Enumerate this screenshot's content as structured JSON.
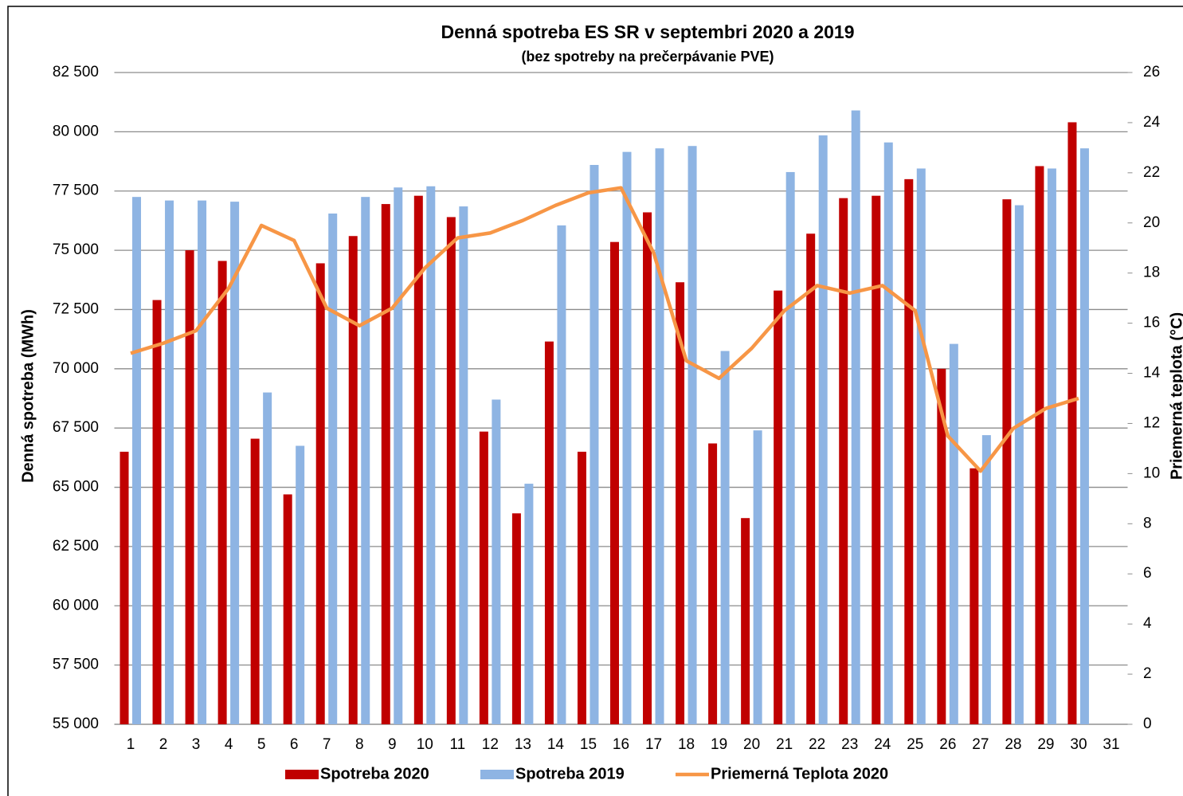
{
  "chart_data": {
    "type": "bar-line",
    "title": "Denná spotreba ES SR v septembri 2020 a 2019",
    "subtitle": "(bez spotreby na prečerpávanie PVE)",
    "y_label": "Denná spotreba (MWh)",
    "y2_label": "Priemerná teplota (°C)",
    "categories": [
      "1",
      "2",
      "3",
      "4",
      "5",
      "6",
      "7",
      "8",
      "9",
      "10",
      "11",
      "12",
      "13",
      "14",
      "15",
      "16",
      "17",
      "18",
      "19",
      "20",
      "21",
      "22",
      "23",
      "24",
      "25",
      "26",
      "27",
      "28",
      "29",
      "30",
      "31"
    ],
    "series": [
      {
        "name": "Spotreba 2020",
        "color": "#c00000",
        "kind": "bar",
        "values": [
          66500,
          72900,
          75000,
          74550,
          67050,
          64700,
          74450,
          75600,
          76950,
          77300,
          76400,
          67350,
          63900,
          71150,
          66500,
          75350,
          76600,
          73650,
          66850,
          63700,
          73300,
          75700,
          77200,
          77300,
          78000,
          70000,
          65800,
          77150,
          78550,
          80400,
          null
        ]
      },
      {
        "name": "Spotreba 2019",
        "color": "#8eb4e3",
        "kind": "bar",
        "values": [
          77250,
          77100,
          77100,
          77050,
          69000,
          66750,
          76550,
          77250,
          77650,
          77700,
          76850,
          68700,
          65150,
          76050,
          78600,
          79150,
          79300,
          79400,
          70750,
          67400,
          78300,
          79850,
          80900,
          79550,
          78450,
          71050,
          67200,
          76900,
          78450,
          79300,
          null
        ]
      },
      {
        "name": "Priemerná Teplota 2020",
        "color": "#f79646",
        "kind": "line",
        "axis": "y2",
        "values": [
          14.8,
          15.2,
          15.7,
          17.4,
          19.9,
          19.3,
          16.6,
          15.9,
          16.6,
          18.2,
          19.4,
          19.6,
          20.1,
          20.7,
          21.2,
          21.4,
          18.8,
          14.5,
          13.8,
          15.0,
          16.5,
          17.5,
          17.2,
          17.5,
          16.5,
          11.5,
          10.1,
          11.8,
          12.6,
          13.0,
          null
        ]
      }
    ],
    "ylim": [
      55000,
      82500
    ],
    "yticks": [
      {
        "value": 55000,
        "label": "55 000"
      },
      {
        "value": 57500,
        "label": "57 500"
      },
      {
        "value": 60000,
        "label": "60 000"
      },
      {
        "value": 62500,
        "label": "62 500"
      },
      {
        "value": 65000,
        "label": "65 000"
      },
      {
        "value": 67500,
        "label": "67 500"
      },
      {
        "value": 70000,
        "label": "70 000"
      },
      {
        "value": 72500,
        "label": "72 500"
      },
      {
        "value": 75000,
        "label": "75 000"
      },
      {
        "value": 77500,
        "label": "77 500"
      },
      {
        "value": 80000,
        "label": "80 000"
      },
      {
        "value": 82500,
        "label": "82 500"
      }
    ],
    "y2lim": [
      0,
      26
    ],
    "y2ticks": [
      0,
      2,
      4,
      6,
      8,
      10,
      12,
      14,
      16,
      18,
      20,
      22,
      24,
      26
    ],
    "grid": true,
    "legend": "bottom"
  }
}
